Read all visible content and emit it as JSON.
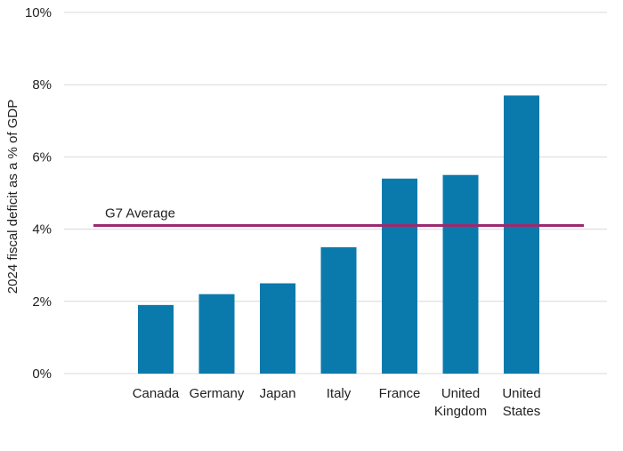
{
  "chart_data": {
    "type": "bar",
    "categories": [
      [
        "Canada"
      ],
      [
        "Germany"
      ],
      [
        "Japan"
      ],
      [
        "Italy"
      ],
      [
        "France"
      ],
      [
        "United",
        "Kingdom"
      ],
      [
        "United",
        "States"
      ]
    ],
    "values": [
      1.9,
      2.2,
      2.5,
      3.5,
      5.4,
      5.5,
      7.7
    ],
    "ylabel": "2024 fiscal deficit as a % of GDP",
    "ylim": [
      0,
      10
    ],
    "yticks": [
      0,
      2,
      4,
      6,
      8,
      10
    ],
    "ytick_labels": [
      "0%",
      "2%",
      "4%",
      "6%",
      "8%",
      "10%"
    ],
    "reference_line": {
      "label": "G7 Average",
      "value": 4.1
    },
    "grid": true,
    "colors": {
      "bar": "#0a7aad",
      "reference_line": "#9b2a6e",
      "grid": "#d9d9d9"
    }
  }
}
